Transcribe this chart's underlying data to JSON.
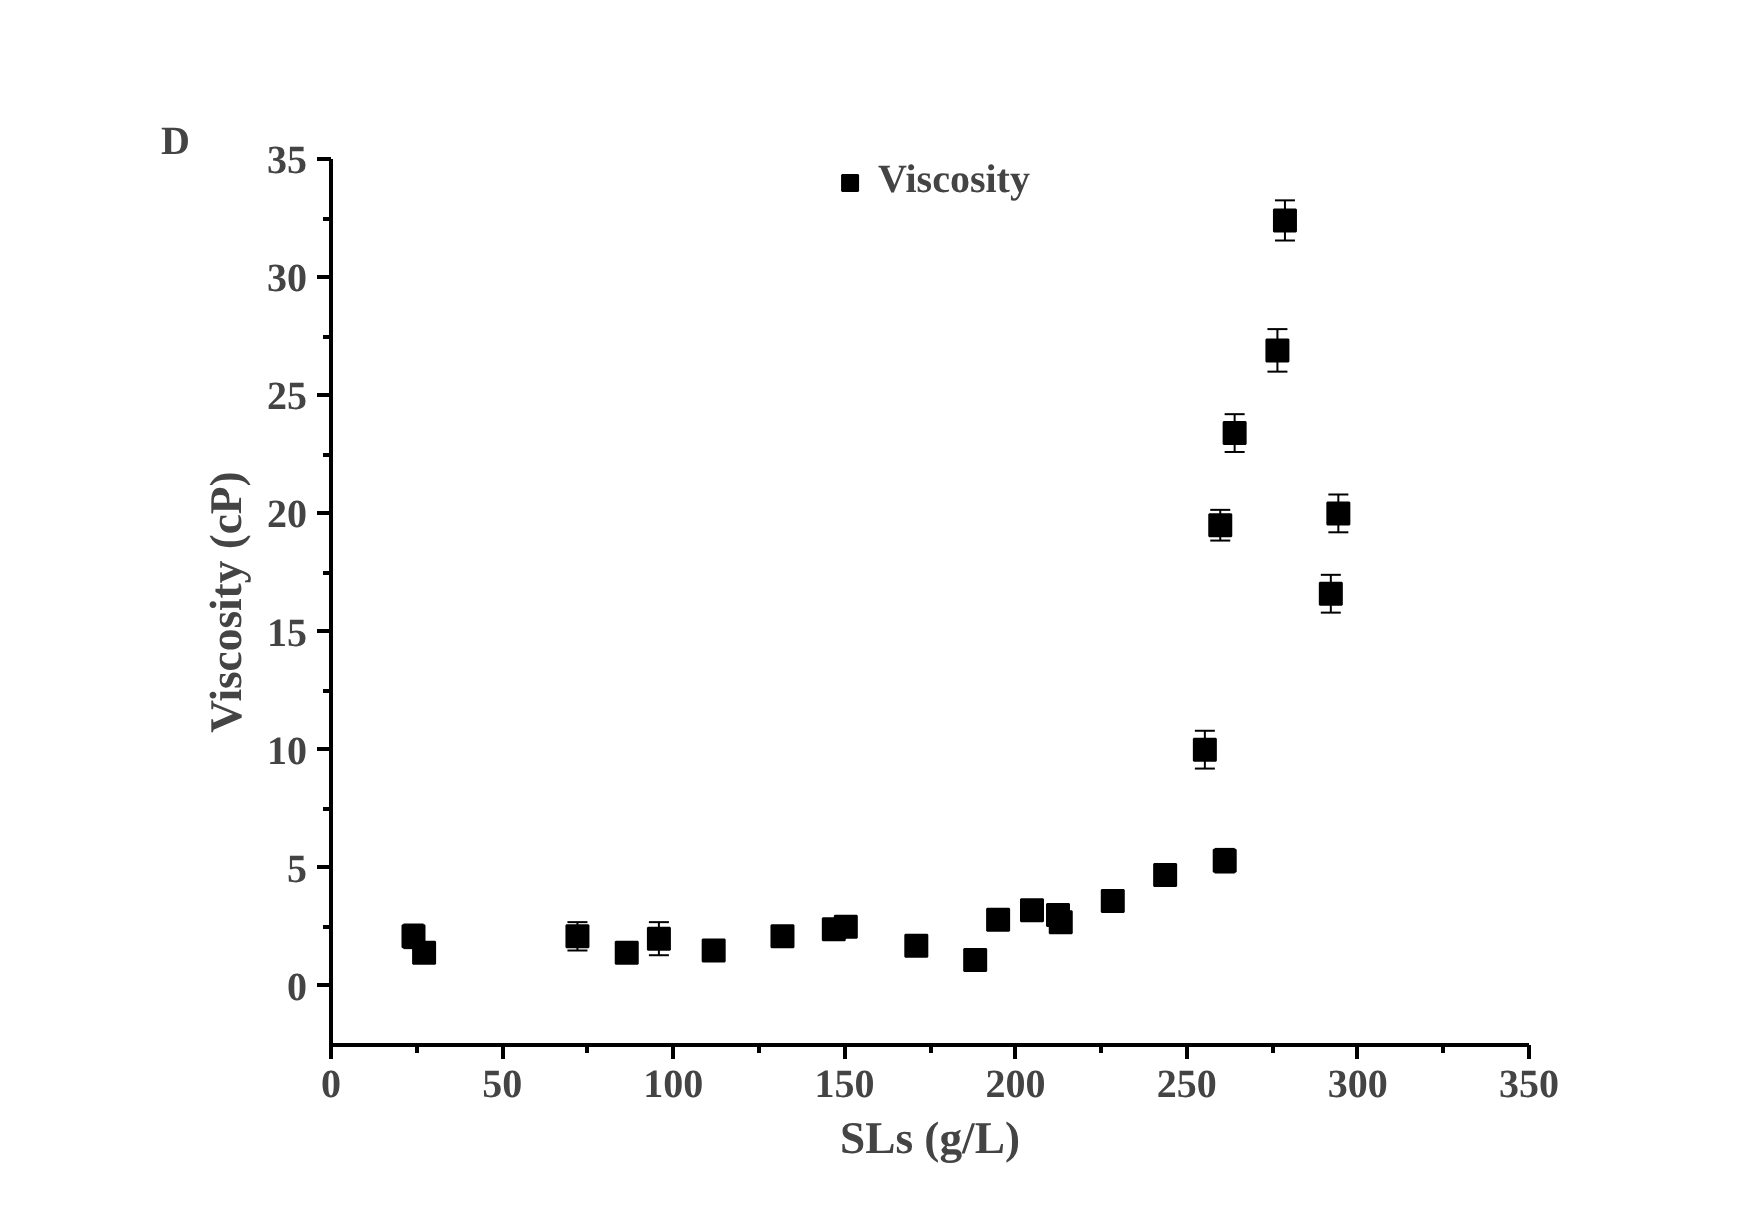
{
  "chart_data": {
    "type": "scatter",
    "xlabel": "SLs (g/L)",
    "ylabel": "Viscosity (cP)",
    "annotations": [
      "D"
    ],
    "x": [
      24.1,
      27.2,
      72,
      86.4,
      95.8,
      111.8,
      131.9,
      146.9,
      150.4,
      171,
      188.2,
      194.9,
      204.8,
      212.4,
      213.2,
      228.4,
      243.7,
      255.3,
      259.8,
      261.1,
      264,
      276.5,
      278.7,
      292.1,
      294.3
    ],
    "series": [
      {
        "name": "Viscosity",
        "color": "#000000",
        "values": [
          2.1,
          1.4,
          2.1,
          1.4,
          2.0,
          1.5,
          2.1,
          2.4,
          2.5,
          1.7,
          1.1,
          2.8,
          3.2,
          3.0,
          2.7,
          3.6,
          4.7,
          10.0,
          19.5,
          5.3,
          23.4,
          26.9,
          32.4,
          16.6,
          20.0
        ],
        "errors": [
          0.5,
          null,
          0.6,
          null,
          0.7,
          null,
          null,
          null,
          null,
          null,
          null,
          null,
          null,
          null,
          0.4,
          null,
          null,
          0.8,
          0.65,
          0.5,
          0.8,
          0.9,
          0.85,
          0.8,
          0.8
        ]
      }
    ],
    "xlim": [
      0,
      350
    ],
    "ylim": [
      -2.5,
      35
    ],
    "xticks": [
      0,
      50,
      100,
      150,
      200,
      250,
      300,
      350
    ],
    "yticks": [
      0,
      5,
      10,
      15,
      20,
      25,
      30,
      35
    ],
    "marker": "square",
    "grid": false,
    "legend": "top"
  }
}
